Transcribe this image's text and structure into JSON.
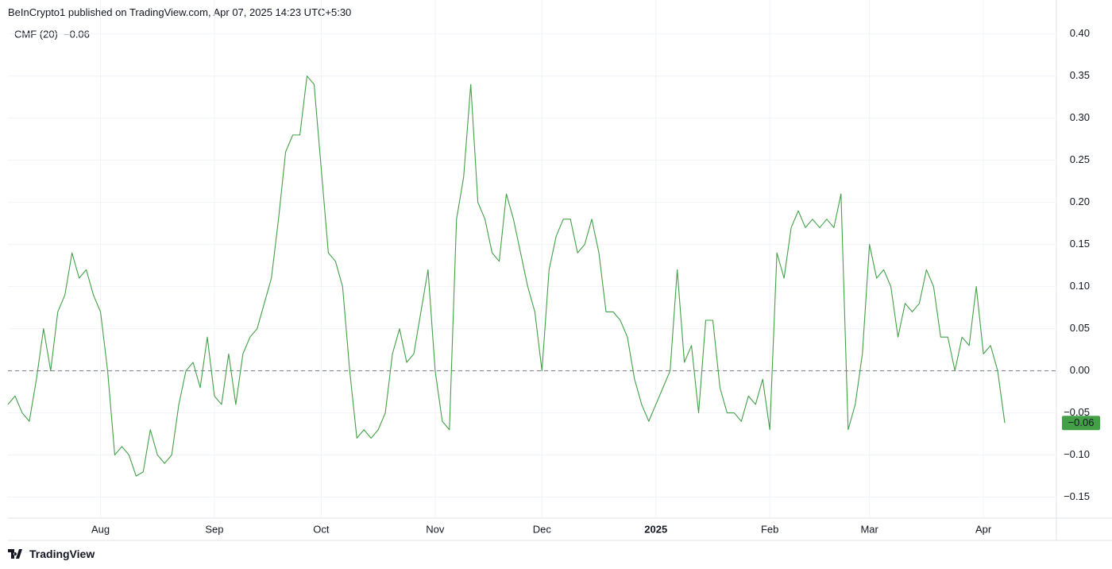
{
  "header": {
    "text": "BeInCrypto1 published on TradingView.com, Apr 07, 2025 14:23 UTC+5:30"
  },
  "footer": {
    "brand": "TradingView"
  },
  "chart_data": {
    "type": "line",
    "categories": [
      null,
      null,
      null,
      null,
      null,
      null,
      null,
      null,
      null,
      null,
      null,
      null,
      null,
      "Aug",
      null,
      null,
      null,
      null,
      null,
      null,
      null,
      null,
      null,
      null,
      null,
      null,
      null,
      null,
      null,
      "Sep",
      null,
      null,
      null,
      null,
      null,
      null,
      null,
      null,
      null,
      null,
      null,
      null,
      null,
      null,
      "Oct",
      null,
      null,
      null,
      null,
      null,
      null,
      null,
      null,
      null,
      null,
      null,
      null,
      null,
      null,
      null,
      "Nov",
      null,
      null,
      null,
      null,
      null,
      null,
      null,
      null,
      null,
      null,
      null,
      null,
      null,
      null,
      "Dec",
      null,
      null,
      null,
      null,
      null,
      null,
      null,
      null,
      null,
      null,
      null,
      null,
      null,
      null,
      null,
      "2025",
      null,
      null,
      null,
      null,
      null,
      null,
      null,
      null,
      null,
      null,
      null,
      null,
      null,
      null,
      null,
      "Feb",
      null,
      null,
      null,
      null,
      null,
      null,
      null,
      null,
      null,
      null,
      null,
      null,
      null,
      "Mar",
      null,
      null,
      null,
      null,
      null,
      null,
      null,
      null,
      null,
      null,
      null,
      null,
      null,
      null,
      null,
      "Apr",
      null,
      null,
      null
    ],
    "series": [
      {
        "name": "CMF (20)",
        "color": "#43a047",
        "last_label": "−0.06",
        "values": [
          -0.04,
          -0.03,
          -0.05,
          -0.06,
          -0.01,
          0.05,
          0.0,
          0.07,
          0.09,
          0.14,
          0.11,
          0.12,
          0.09,
          0.07,
          0.0,
          -0.1,
          -0.09,
          -0.1,
          -0.125,
          -0.12,
          -0.07,
          -0.1,
          -0.11,
          -0.1,
          -0.04,
          0.0,
          0.01,
          -0.02,
          0.04,
          -0.03,
          -0.04,
          0.02,
          -0.04,
          0.02,
          0.04,
          0.05,
          0.08,
          0.11,
          0.18,
          0.26,
          0.28,
          0.28,
          0.35,
          0.34,
          0.24,
          0.14,
          0.13,
          0.1,
          0.0,
          -0.08,
          -0.07,
          -0.08,
          -0.07,
          -0.05,
          0.02,
          0.05,
          0.01,
          0.02,
          0.07,
          0.12,
          0.0,
          -0.06,
          -0.07,
          0.18,
          0.23,
          0.34,
          0.2,
          0.18,
          0.14,
          0.13,
          0.21,
          0.18,
          0.14,
          0.1,
          0.07,
          0.0,
          0.12,
          0.16,
          0.18,
          0.18,
          0.14,
          0.15,
          0.18,
          0.14,
          0.07,
          0.07,
          0.06,
          0.04,
          -0.01,
          -0.04,
          -0.06,
          -0.04,
          -0.02,
          0.0,
          0.12,
          0.01,
          0.03,
          -0.05,
          0.06,
          0.06,
          -0.02,
          -0.05,
          -0.05,
          -0.06,
          -0.03,
          -0.04,
          -0.01,
          -0.07,
          0.14,
          0.11,
          0.17,
          0.19,
          0.17,
          0.18,
          0.17,
          0.18,
          0.17,
          0.21,
          -0.07,
          -0.04,
          0.02,
          0.15,
          0.11,
          0.12,
          0.1,
          0.04,
          0.08,
          0.07,
          0.08,
          0.12,
          0.1,
          0.04,
          0.04,
          0.0,
          0.04,
          0.03,
          0.1,
          0.02,
          0.03,
          0.0,
          -0.062
        ]
      }
    ],
    "ylim": [
      -0.175,
      0.412
    ],
    "yticks": [
      {
        "value": -0.15,
        "label": "−0.15"
      },
      {
        "value": -0.1,
        "label": "−0.10"
      },
      {
        "value": -0.05,
        "label": "−0.05"
      },
      {
        "value": 0,
        "label": "0.00"
      },
      {
        "value": 0.05,
        "label": "0.05"
      },
      {
        "value": 0.1,
        "label": "0.10"
      },
      {
        "value": 0.15,
        "label": "0.15"
      },
      {
        "value": 0.2,
        "label": "0.20"
      },
      {
        "value": 0.25,
        "label": "0.25"
      },
      {
        "value": 0.3,
        "label": "0.30"
      },
      {
        "value": 0.35,
        "label": "0.35"
      },
      {
        "value": 0.4,
        "label": "0.40"
      }
    ],
    "grid": true,
    "zero_line": true
  }
}
